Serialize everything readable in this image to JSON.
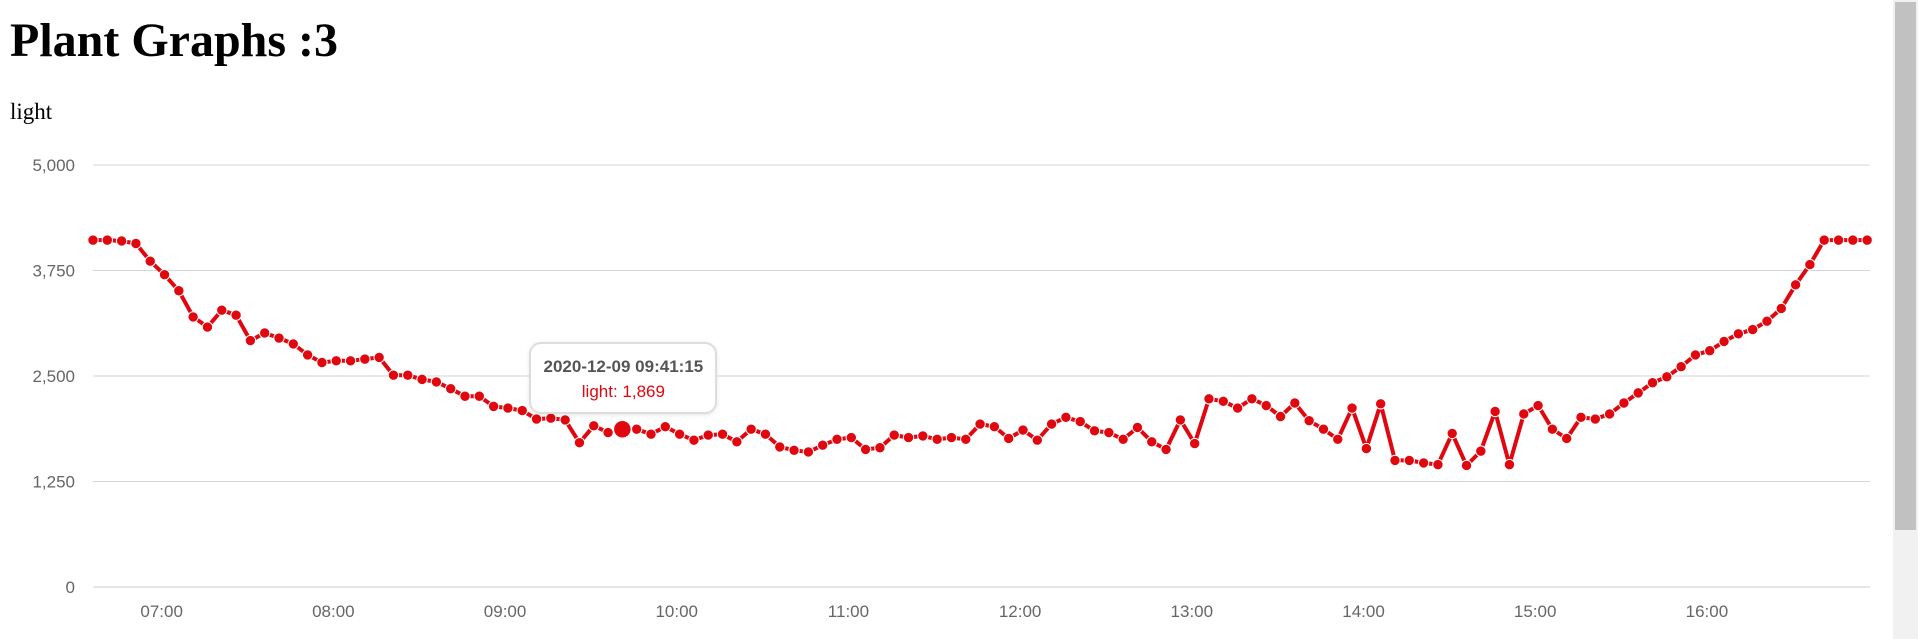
{
  "page": {
    "title": "Plant Graphs :3"
  },
  "chart": {
    "label": "light"
  },
  "tooltip": {
    "timestamp": "2020-12-09 09:41:15",
    "value_text": "light: 1,869"
  },
  "chart_data": {
    "type": "line",
    "title": "",
    "xlabel": "",
    "ylabel": "",
    "ylim": [
      0,
      5000
    ],
    "yticks": [
      0,
      1250,
      2500,
      3750,
      5000
    ],
    "ytick_labels": [
      "0",
      "1,250",
      "2,500",
      "3,750",
      "5,000"
    ],
    "xlim": [
      "06:36",
      "16:57"
    ],
    "xticks": [
      "07:00",
      "08:00",
      "09:00",
      "10:00",
      "11:00",
      "12:00",
      "13:00",
      "14:00",
      "15:00",
      "16:00"
    ],
    "grid": true,
    "legend": "none",
    "series_color": "#e0070f",
    "series": [
      {
        "name": "light",
        "x": [
          "06:36",
          "06:41",
          "06:46",
          "06:51",
          "06:56",
          "07:01",
          "07:06",
          "07:11",
          "07:16",
          "07:21",
          "07:26",
          "07:31",
          "07:36",
          "07:41",
          "07:46",
          "07:51",
          "07:56",
          "08:01",
          "08:06",
          "08:11",
          "08:16",
          "08:21",
          "08:26",
          "08:31",
          "08:36",
          "08:41",
          "08:46",
          "08:51",
          "08:56",
          "09:01",
          "09:06",
          "09:11",
          "09:16",
          "09:21",
          "09:26",
          "09:31",
          "09:36",
          "09:41",
          "09:46",
          "09:51",
          "09:56",
          "10:01",
          "10:06",
          "10:11",
          "10:16",
          "10:21",
          "10:26",
          "10:31",
          "10:36",
          "10:41",
          "10:46",
          "10:51",
          "10:56",
          "11:01",
          "11:06",
          "11:11",
          "11:16",
          "11:21",
          "11:26",
          "11:31",
          "11:36",
          "11:41",
          "11:46",
          "11:51",
          "11:56",
          "12:01",
          "12:06",
          "12:11",
          "12:16",
          "12:21",
          "12:26",
          "12:31",
          "12:36",
          "12:41",
          "12:46",
          "12:51",
          "12:56",
          "13:01",
          "13:06",
          "13:11",
          "13:16",
          "13:21",
          "13:26",
          "13:31",
          "13:36",
          "13:41",
          "13:46",
          "13:51",
          "13:56",
          "14:01",
          "14:06",
          "14:11",
          "14:16",
          "14:21",
          "14:26",
          "14:31",
          "14:36",
          "14:41",
          "14:46",
          "14:51",
          "14:56",
          "15:01",
          "15:06",
          "15:11",
          "15:16",
          "15:21",
          "15:26",
          "15:31",
          "15:36",
          "15:41",
          "15:46",
          "15:51",
          "15:56",
          "16:01",
          "16:06",
          "16:11",
          "16:16",
          "16:21",
          "16:26",
          "16:31",
          "16:36",
          "16:41",
          "16:46",
          "16:51",
          "16:56"
        ],
        "values": [
          4110,
          4110,
          4100,
          4070,
          3860,
          3700,
          3510,
          3200,
          3080,
          3280,
          3220,
          2920,
          3010,
          2950,
          2880,
          2750,
          2660,
          2680,
          2680,
          2700,
          2720,
          2510,
          2510,
          2460,
          2430,
          2350,
          2260,
          2260,
          2140,
          2120,
          2090,
          1990,
          2000,
          1980,
          1710,
          1910,
          1830,
          1869,
          1870,
          1810,
          1900,
          1810,
          1740,
          1800,
          1810,
          1720,
          1870,
          1810,
          1660,
          1620,
          1600,
          1680,
          1750,
          1770,
          1630,
          1650,
          1800,
          1770,
          1790,
          1750,
          1770,
          1750,
          1930,
          1900,
          1760,
          1860,
          1740,
          1930,
          2010,
          1960,
          1850,
          1830,
          1750,
          1890,
          1720,
          1630,
          1980,
          1700,
          2230,
          2200,
          2120,
          2230,
          2150,
          2020,
          2180,
          1970,
          1870,
          1750,
          2120,
          1640,
          2170,
          1500,
          1500,
          1470,
          1450,
          1820,
          1440,
          1610,
          2080,
          1450,
          2050,
          2150,
          1870,
          1760,
          2010,
          1990,
          2050,
          2180,
          2300,
          2420,
          2490,
          2610,
          2750,
          2800,
          2910,
          3000,
          3050,
          3150,
          3300,
          3580,
          3820,
          4110,
          4110,
          4110,
          4110
        ]
      }
    ],
    "highlighted_point": {
      "x": "09:41",
      "y": 1869
    }
  }
}
